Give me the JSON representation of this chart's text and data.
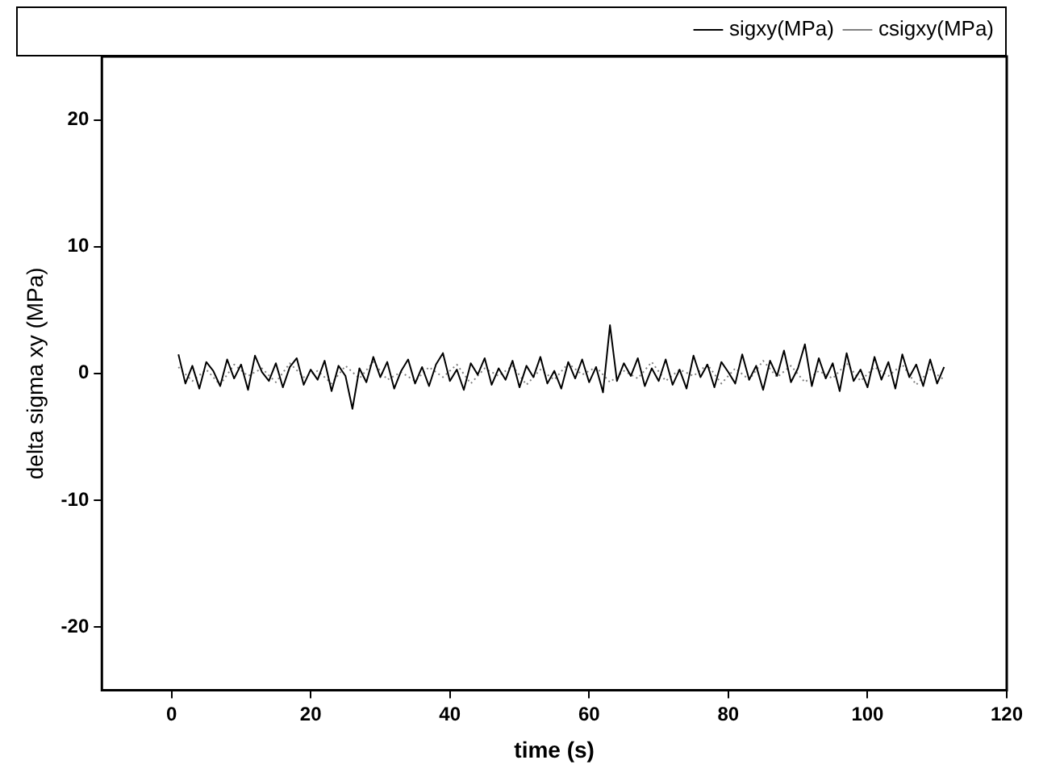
{
  "chart_data": {
    "type": "line",
    "xlabel": "time (s)",
    "ylabel": "delta sigma xy (MPa)",
    "xlim": [
      -10,
      120
    ],
    "xticks": [
      0,
      20,
      40,
      60,
      80,
      100,
      120
    ],
    "ylim": [
      -25,
      25
    ],
    "yticks": [
      -20,
      -10,
      0,
      10,
      20
    ],
    "grid": false,
    "legend": "top right",
    "marker": "none",
    "x": [
      1,
      2,
      3,
      4,
      5,
      6,
      7,
      8,
      9,
      10,
      11,
      12,
      13,
      14,
      15,
      16,
      17,
      18,
      19,
      20,
      21,
      22,
      23,
      24,
      25,
      26,
      27,
      28,
      29,
      30,
      31,
      32,
      33,
      34,
      35,
      36,
      37,
      38,
      39,
      40,
      41,
      42,
      43,
      44,
      45,
      46,
      47,
      48,
      49,
      50,
      51,
      52,
      53,
      54,
      55,
      56,
      57,
      58,
      59,
      60,
      61,
      62,
      63,
      64,
      65,
      66,
      67,
      68,
      69,
      70,
      71,
      72,
      73,
      74,
      75,
      76,
      77,
      78,
      79,
      80,
      81,
      82,
      83,
      84,
      85,
      86,
      87,
      88,
      89,
      90,
      91,
      92,
      93,
      94,
      95,
      96,
      97,
      98,
      99,
      100,
      101,
      102,
      103,
      104,
      105,
      106,
      107,
      108,
      109,
      110,
      111
    ],
    "series": [
      {
        "name": "sigxy(MPa)",
        "color": "#000000",
        "line_style": "solid",
        "values": [
          1.5,
          -0.8,
          0.6,
          -1.2,
          0.9,
          0.2,
          -1.0,
          1.1,
          -0.4,
          0.7,
          -1.3,
          1.4,
          0.1,
          -0.6,
          0.8,
          -1.1,
          0.5,
          1.2,
          -0.9,
          0.3,
          -0.5,
          1.0,
          -1.4,
          0.6,
          -0.2,
          -2.8,
          0.4,
          -0.7,
          1.3,
          -0.3,
          0.9,
          -1.2,
          0.2,
          1.1,
          -0.8,
          0.5,
          -1.0,
          0.7,
          1.6,
          -0.6,
          0.3,
          -1.3,
          0.8,
          -0.1,
          1.2,
          -0.9,
          0.4,
          -0.5,
          1.0,
          -1.1,
          0.6,
          -0.3,
          1.3,
          -0.8,
          0.2,
          -1.2,
          0.9,
          -0.4,
          1.1,
          -0.7,
          0.5,
          -1.5,
          3.8,
          -0.6,
          0.8,
          -0.2,
          1.2,
          -1.0,
          0.4,
          -0.6,
          1.1,
          -0.9,
          0.3,
          -1.2,
          1.4,
          -0.3,
          0.7,
          -1.1,
          0.9,
          0.1,
          -0.8,
          1.5,
          -0.5,
          0.6,
          -1.3,
          1.0,
          -0.2,
          1.8,
          -0.7,
          0.4,
          2.3,
          -1.0,
          1.2,
          -0.4,
          0.8,
          -1.4,
          1.6,
          -0.6,
          0.3,
          -1.1,
          1.3,
          -0.5,
          0.9,
          -1.2,
          1.5,
          -0.3,
          0.7,
          -1.0,
          1.1,
          -0.8,
          0.5
        ]
      },
      {
        "name": "csigxy(MPa)",
        "color": "#808080",
        "line_style": "dotted",
        "x": [
          1,
          3,
          5,
          7,
          9,
          11,
          13,
          15,
          17,
          19,
          21,
          23,
          25,
          27,
          29,
          31,
          33,
          35,
          37,
          39,
          41,
          43,
          45,
          47,
          49,
          51,
          53,
          55,
          57,
          59,
          61,
          63,
          65,
          67,
          69,
          71,
          73,
          75,
          77,
          79,
          81,
          83,
          85,
          87,
          89,
          91,
          93,
          95,
          97,
          99,
          101,
          103,
          105,
          107,
          109,
          111
        ],
        "values": [
          0.5,
          -0.6,
          0.3,
          -0.9,
          0.7,
          -0.2,
          0.4,
          -0.7,
          0.8,
          -0.3,
          0.2,
          -0.8,
          0.6,
          -0.4,
          0.9,
          -0.5,
          0.1,
          -0.6,
          0.5,
          -0.3,
          0.7,
          -0.8,
          0.4,
          -0.2,
          0.6,
          -0.9,
          0.3,
          -0.5,
          0.8,
          -0.1,
          0.5,
          -0.7,
          0.2,
          -0.4,
          0.9,
          -0.6,
          0.3,
          -0.2,
          0.7,
          -0.8,
          0.4,
          -0.5,
          1.0,
          -0.3,
          0.6,
          -0.7,
          0.2,
          -0.4,
          0.8,
          -0.6,
          0.5,
          -0.2,
          0.7,
          -0.9,
          0.3,
          -0.5
        ]
      }
    ]
  }
}
